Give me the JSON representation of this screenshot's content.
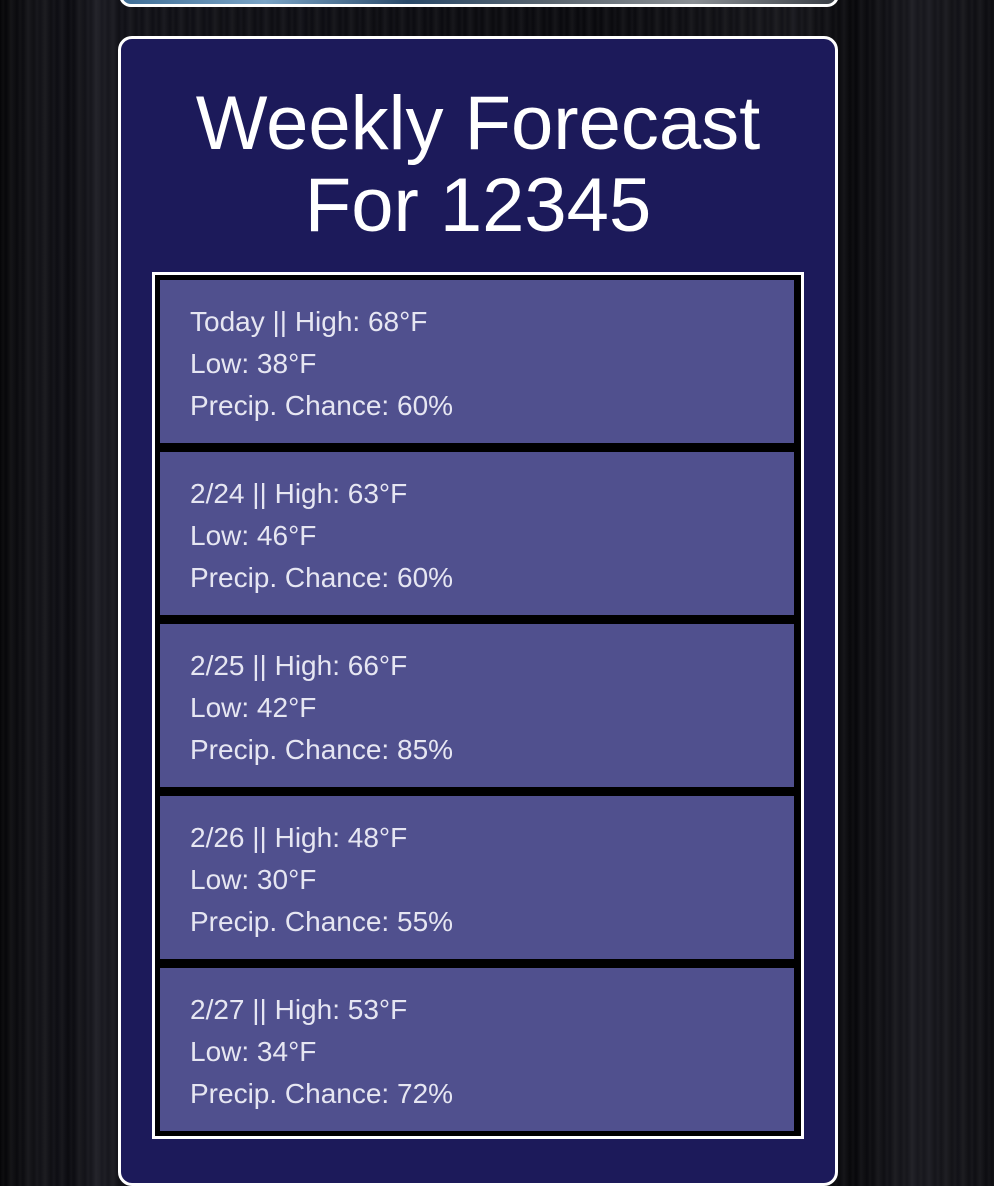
{
  "forecast": {
    "title_line1": "Weekly Forecast",
    "title_line2": "For 12345",
    "days": [
      {
        "label": "Today || High: 68°F",
        "low": "Low: 38°F",
        "precip": "Precip. Chance: 60%"
      },
      {
        "label": "2/24 || High: 63°F",
        "low": "Low: 46°F",
        "precip": "Precip. Chance: 60%"
      },
      {
        "label": "2/25 || High: 66°F",
        "low": "Low: 42°F",
        "precip": "Precip. Chance: 85%"
      },
      {
        "label": "2/26 || High: 48°F",
        "low": "Low: 30°F",
        "precip": "Precip. Chance: 55%"
      },
      {
        "label": "2/27 || High: 53°F",
        "low": "Low: 34°F",
        "precip": "Precip. Chance: 72%"
      }
    ]
  },
  "colors": {
    "card_background": "#1c1a5a",
    "day_background": "#50508e",
    "border": "#ffffff",
    "text": "#ffffff"
  }
}
